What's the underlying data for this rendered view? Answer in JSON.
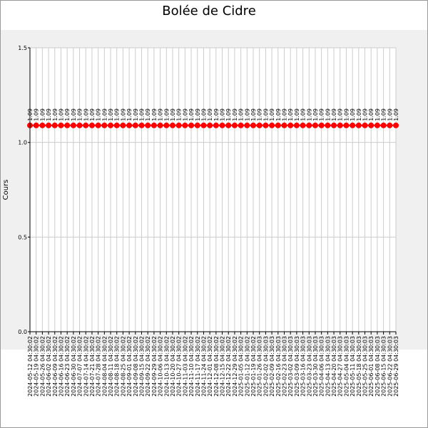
{
  "chart_data": {
    "type": "line",
    "title": "Bolée de Cidre",
    "y_label": "Cours",
    "categories": [
      "2024-05-12 04:30:02",
      "2024-05-19 04:30:02",
      "2024-05-26 04:30:02",
      "2024-06-02 04:30:02",
      "2024-06-09 04:30:02",
      "2024-06-16 04:30:02",
      "2024-06-23 04:30:02",
      "2024-06-30 04:30:02",
      "2024-07-07 04:30:02",
      "2024-07-14 04:30:02",
      "2024-07-21 04:30:02",
      "2024-07-28 04:30:02",
      "2024-08-04 04:30:02",
      "2024-08-11 04:30:02",
      "2024-08-18 04:30:02",
      "2024-08-25 04:30:02",
      "2024-09-01 04:30:02",
      "2024-09-08 04:30:02",
      "2024-09-15 04:30:02",
      "2024-09-22 04:30:02",
      "2024-09-29 04:30:02",
      "2024-10-06 04:30:02",
      "2024-10-13 04:30:02",
      "2024-10-20 04:30:02",
      "2024-10-27 04:30:02",
      "2024-11-03 04:30:02",
      "2024-11-10 04:30:02",
      "2024-11-17 04:30:02",
      "2024-11-24 04:30:02",
      "2024-12-01 04:30:02",
      "2024-12-08 04:30:02",
      "2024-12-15 04:30:02",
      "2024-12-22 04:30:02",
      "2024-12-29 04:30:02",
      "2025-01-05 04:30:02",
      "2025-01-12 04:30:02",
      "2025-01-19 04:30:02",
      "2025-01-26 04:30:03",
      "2025-02-02 04:30:03",
      "2025-02-09 04:30:03",
      "2025-02-16 04:30:03",
      "2025-02-23 04:30:03",
      "2025-03-02 04:30:03",
      "2025-03-09 04:30:03",
      "2025-03-16 04:30:03",
      "2025-03-23 04:30:03",
      "2025-03-30 04:30:03",
      "2025-04-06 04:30:03",
      "2025-04-13 04:30:03",
      "2025-04-20 04:30:03",
      "2025-04-27 04:30:03",
      "2025-05-04 04:30:03",
      "2025-05-11 04:30:03",
      "2025-05-18 04:30:03",
      "2025-05-25 04:30:03",
      "2025-06-01 04:30:03",
      "2025-06-08 04:30:03",
      "2025-06-15 04:30:03",
      "2025-06-22 04:30:03",
      "2025-06-29 04:30:03"
    ],
    "values": [
      1.09,
      1.09,
      1.09,
      1.09,
      1.09,
      1.09,
      1.09,
      1.09,
      1.09,
      1.09,
      1.09,
      1.09,
      1.09,
      1.09,
      1.09,
      1.09,
      1.09,
      1.09,
      1.09,
      1.09,
      1.09,
      1.09,
      1.09,
      1.09,
      1.09,
      1.09,
      1.09,
      1.09,
      1.09,
      1.09,
      1.09,
      1.09,
      1.09,
      1.09,
      1.09,
      1.09,
      1.09,
      1.09,
      1.09,
      1.09,
      1.09,
      1.09,
      1.09,
      1.09,
      1.09,
      1.09,
      1.09,
      1.09,
      1.09,
      1.09,
      1.09,
      1.09,
      1.09,
      1.09,
      1.09,
      1.09,
      1.09,
      1.09,
      1.09,
      1.09
    ],
    "color": "#ff0000",
    "ylim": [
      0,
      1.5
    ],
    "yticks": [
      {
        "value": 0,
        "label": "0.0"
      },
      0.5,
      {
        "value": 1,
        "label": "1.0"
      },
      1.5
    ],
    "grid": true
  }
}
